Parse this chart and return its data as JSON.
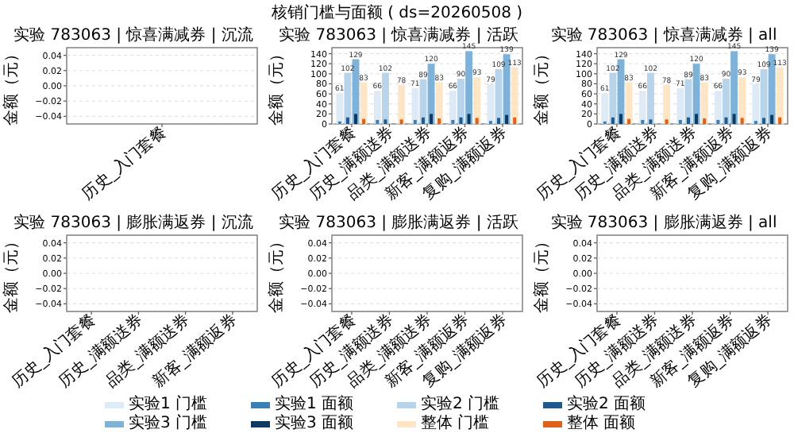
{
  "chart_data": [
    {
      "type": "bar",
      "title": "实验 783063 | 惊喜满减券 | 沉流",
      "annotations": [
        "核销门槛与面额 ( ds=20260508 )"
      ],
      "ylabel": "金额（元）",
      "categories": [
        "历史_入门套餐"
      ],
      "ylim": [
        -0.05,
        0.05
      ],
      "yticks": [
        {
          "value": -0.04,
          "label": "−0.04"
        },
        {
          "value": -0.02,
          "label": "−0.02"
        },
        {
          "value": 0,
          "label": "0.00"
        },
        0.02,
        0.04
      ],
      "grid": "y"
    },
    {
      "type": "bar",
      "title": "实验 783063 | 惊喜满减券 | 活跃",
      "ylabel": "金额（元）",
      "categories": [
        "历史_入门套餐",
        "历史_满额送券",
        "品类_满额送券",
        "新客_满额返券",
        "复购_满额返券"
      ],
      "ylim": [
        0,
        152
      ],
      "yticks": [
        0,
        20,
        40,
        60,
        80,
        100,
        120,
        140
      ],
      "grid": "y",
      "legend": "bottom",
      "series": [
        {
          "name": "实验1 门槛",
          "color": "#deebf7",
          "values": [
            61,
            66,
            71,
            66,
            79
          ],
          "value_labels": [
            "61",
            "66",
            "71",
            "66",
            "79"
          ]
        },
        {
          "name": "实验1 面额",
          "color": "#3a7fb8",
          "values": [
            5,
            8,
            8,
            8,
            6
          ]
        },
        {
          "name": "实验2 门槛",
          "color": "#b7d4ea",
          "values": [
            102,
            102,
            89,
            90,
            109
          ],
          "value_labels": [
            "102",
            "102",
            "89",
            "90",
            "109"
          ]
        },
        {
          "name": "实验2 面额",
          "color": "#1f5a8c",
          "values": [
            13,
            9,
            13,
            13,
            12
          ]
        },
        {
          "name": "实验3 门槛",
          "color": "#7fb2d8",
          "values": [
            129,
            null,
            120,
            145,
            139
          ],
          "value_labels": [
            "129",
            null,
            "120",
            "145",
            "139"
          ]
        },
        {
          "name": "实验3 面额",
          "color": "#0d3a63",
          "values": [
            20,
            null,
            20,
            20,
            18
          ]
        },
        {
          "name": "整体 门槛",
          "color": "#fde5c6",
          "values": [
            83,
            78,
            83,
            93,
            113
          ],
          "value_labels": [
            "83",
            "78",
            "83",
            "93",
            "113"
          ]
        },
        {
          "name": "整体 面额",
          "color": "#e0601a",
          "values": [
            10,
            9,
            11,
            12,
            13
          ]
        }
      ]
    },
    {
      "type": "bar",
      "title": "实验 783063 | 惊喜满减券 | all",
      "ylabel": "金额（元）",
      "categories": [
        "历史_入门套餐",
        "历史_满额送券",
        "品类_满额送券",
        "新客_满额返券",
        "复购_满额返券"
      ],
      "ylim": [
        0,
        152
      ],
      "yticks": [
        0,
        20,
        40,
        60,
        80,
        100,
        120,
        140
      ],
      "grid": "y",
      "series": [
        {
          "color": "#deebf7",
          "values": [
            61,
            66,
            71,
            66,
            79
          ],
          "value_labels": [
            "61",
            "66",
            "71",
            "66",
            "79"
          ]
        },
        {
          "color": "#3a7fb8",
          "values": [
            5,
            8,
            8,
            8,
            6
          ]
        },
        {
          "color": "#b7d4ea",
          "values": [
            102,
            102,
            89,
            90,
            109
          ],
          "value_labels": [
            "102",
            "102",
            "89",
            "90",
            "109"
          ]
        },
        {
          "color": "#1f5a8c",
          "values": [
            13,
            9,
            13,
            13,
            12
          ]
        },
        {
          "color": "#7fb2d8",
          "values": [
            129,
            null,
            120,
            145,
            139
          ],
          "value_labels": [
            "129",
            null,
            "120",
            "145",
            "139"
          ]
        },
        {
          "color": "#0d3a63",
          "values": [
            20,
            null,
            20,
            20,
            18
          ]
        },
        {
          "color": "#fde5c6",
          "values": [
            83,
            78,
            83,
            93,
            113
          ],
          "value_labels": [
            "83",
            "78",
            "83",
            "93",
            "113"
          ]
        },
        {
          "color": "#e0601a",
          "values": [
            10,
            9,
            11,
            12,
            13
          ]
        }
      ]
    },
    {
      "type": "bar",
      "title": "实验 783063 | 膨胀满返券 | 沉流",
      "ylabel": "金额（元）",
      "categories": [
        "历史_入门套餐",
        "历史_满额送券",
        "品类_满额送券",
        "新客_满额返券"
      ],
      "ylim": [
        -0.05,
        0.05
      ],
      "yticks": [
        {
          "value": -0.04,
          "label": "−0.04"
        },
        {
          "value": -0.02,
          "label": "−0.02"
        },
        {
          "value": 0,
          "label": "0.00"
        },
        0.02,
        0.04
      ],
      "grid": "y"
    },
    {
      "type": "bar",
      "title": "实验 783063 | 膨胀满返券 | 活跃",
      "ylabel": "金额（元）",
      "categories": [
        "历史_入门套餐",
        "历史_满额送券",
        "品类_满额送券",
        "新客_满额返券",
        "复购_满额返券"
      ],
      "ylim": [
        -0.05,
        0.05
      ],
      "yticks": [
        {
          "value": -0.04,
          "label": "−0.04"
        },
        {
          "value": -0.02,
          "label": "−0.02"
        },
        {
          "value": 0,
          "label": "0.00"
        },
        0.02,
        0.04
      ],
      "grid": "y"
    },
    {
      "type": "bar",
      "title": "实验 783063 | 膨胀满返券 | all",
      "ylabel": "金额（元）",
      "categories": [
        "历史_入门套餐",
        "历史_满额送券",
        "品类_满额送券",
        "新客_满额返券",
        "复购_满额返券"
      ],
      "ylim": [
        -0.05,
        0.05
      ],
      "yticks": [
        {
          "value": -0.04,
          "label": "−0.04"
        },
        {
          "value": -0.02,
          "label": "−0.02"
        },
        {
          "value": 0,
          "label": "0.00"
        },
        0.02,
        0.04
      ],
      "grid": "y"
    }
  ]
}
